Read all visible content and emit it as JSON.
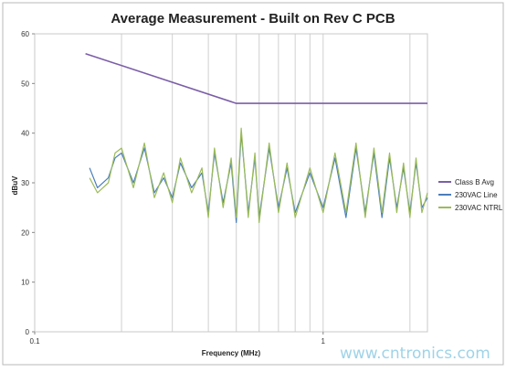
{
  "chart_data": {
    "type": "line",
    "title": "Average Measurement - Built on Rev C PCB",
    "xlabel": "Frequency (MHz)",
    "ylabel": "dBuV",
    "x_scale": "log",
    "xlim": [
      0.1,
      2.3
    ],
    "ylim": [
      0,
      60
    ],
    "y_ticks": [
      0,
      10,
      20,
      30,
      40,
      50,
      60
    ],
    "x_tick_labels": [
      {
        "value": 0.1,
        "label": "0.1"
      },
      {
        "value": 1,
        "label": "1"
      }
    ],
    "grid": "vertical minor lines at log decades",
    "legend_position": "right",
    "series": [
      {
        "name": "Class B Avg",
        "color": "#7b5ea7",
        "x": [
          0.15,
          0.5,
          2.3
        ],
        "y": [
          56,
          46,
          46
        ]
      },
      {
        "name": "230VAC Line",
        "color": "#4a7ebb",
        "x": [
          0.155,
          0.165,
          0.18,
          0.19,
          0.2,
          0.22,
          0.24,
          0.26,
          0.28,
          0.3,
          0.32,
          0.35,
          0.38,
          0.4,
          0.42,
          0.45,
          0.48,
          0.5,
          0.52,
          0.55,
          0.58,
          0.6,
          0.65,
          0.7,
          0.75,
          0.8,
          0.9,
          1.0,
          1.1,
          1.2,
          1.3,
          1.4,
          1.5,
          1.6,
          1.7,
          1.8,
          1.9,
          2.0,
          2.1,
          2.2,
          2.3
        ],
        "y": [
          33,
          29,
          31,
          35,
          36,
          30,
          37,
          28,
          31,
          27,
          34,
          29,
          32,
          24,
          36,
          26,
          34,
          22,
          40,
          24,
          35,
          23,
          37,
          25,
          33,
          24,
          32,
          25,
          35,
          23,
          37,
          24,
          36,
          23,
          35,
          25,
          33,
          24,
          34,
          25,
          27
        ]
      },
      {
        "name": "230VAC NTRL",
        "color": "#9bbb59",
        "x": [
          0.155,
          0.165,
          0.18,
          0.19,
          0.2,
          0.22,
          0.24,
          0.26,
          0.28,
          0.3,
          0.32,
          0.35,
          0.38,
          0.4,
          0.42,
          0.45,
          0.48,
          0.5,
          0.52,
          0.55,
          0.58,
          0.6,
          0.65,
          0.7,
          0.75,
          0.8,
          0.9,
          1.0,
          1.1,
          1.2,
          1.3,
          1.4,
          1.5,
          1.6,
          1.7,
          1.8,
          1.9,
          2.0,
          2.1,
          2.2,
          2.3
        ],
        "y": [
          31,
          28,
          30,
          36,
          37,
          29,
          38,
          27,
          32,
          26,
          35,
          28,
          33,
          23,
          37,
          25,
          35,
          23,
          41,
          23,
          36,
          22,
          38,
          24,
          34,
          23,
          33,
          24,
          36,
          24,
          38,
          23,
          37,
          24,
          36,
          24,
          34,
          23,
          35,
          24,
          28
        ]
      }
    ]
  },
  "watermark": "www.cntronics.com"
}
